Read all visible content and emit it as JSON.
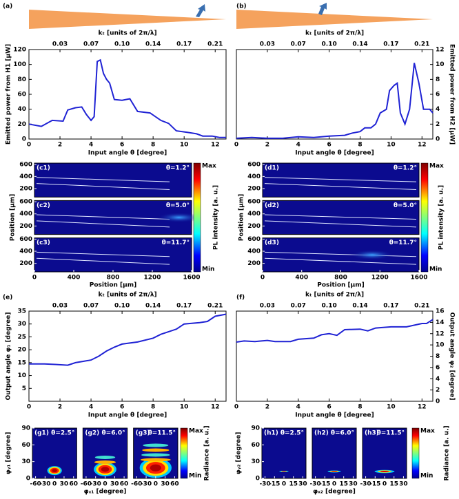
{
  "chart_data": [
    {
      "type": "line",
      "panel_label": "(a)",
      "x2label": "kₜ [units of 2π/λ]",
      "xlabel": "Input angle θ [degree]",
      "ylabel": "Emitted power from H1 [μW]",
      "y_side": "left",
      "xlim": [
        0,
        12.7
      ],
      "xticks": [
        0,
        2,
        4,
        6,
        8,
        10,
        12
      ],
      "x2ticks": [
        {
          "value": 2,
          "label": "0.03"
        },
        {
          "value": 4,
          "label": "0.07"
        },
        {
          "value": 6,
          "label": "0.10"
        },
        {
          "value": 8,
          "label": "0.14"
        },
        {
          "value": 10,
          "label": "0.17"
        },
        {
          "value": 12,
          "label": "0.21"
        }
      ],
      "ylim": [
        0,
        120
      ],
      "yticks": [
        0,
        20,
        40,
        60,
        80,
        100,
        120
      ],
      "x": [
        0,
        0.8,
        1.5,
        2.2,
        2.5,
        3,
        3.4,
        3.7,
        4,
        4.2,
        4.4,
        4.6,
        4.8,
        5,
        5.2,
        5.5,
        6,
        6.5,
        7,
        7.8,
        8.5,
        9,
        9.5,
        10.2,
        10.8,
        11.2,
        11.8,
        12.3,
        12.7
      ],
      "series": [
        {
          "color": "#1f22d4",
          "values": [
            20,
            17,
            25,
            24,
            39,
            42,
            43,
            33,
            25,
            30,
            104,
            106,
            88,
            80,
            75,
            53,
            52,
            54,
            37,
            35,
            25,
            21,
            11,
            9,
            7,
            4,
            4,
            2,
            2
          ]
        }
      ]
    },
    {
      "type": "line",
      "panel_label": "(b)",
      "x2label": "kₜ [units of 2π/λ]",
      "xlabel": "Input angle θ [degree]",
      "ylabel": "Emitted power from H2 [μW]",
      "y_side": "right",
      "xlim": [
        0,
        12.7
      ],
      "xticks": [
        0,
        2,
        4,
        6,
        8,
        10,
        12
      ],
      "x2ticks": [
        {
          "value": 2,
          "label": "0.03"
        },
        {
          "value": 4,
          "label": "0.07"
        },
        {
          "value": 6,
          "label": "0.10"
        },
        {
          "value": 8,
          "label": "0.14"
        },
        {
          "value": 10,
          "label": "0.17"
        },
        {
          "value": 12,
          "label": "0.21"
        }
      ],
      "ylim": [
        0,
        12
      ],
      "yticks": [
        0,
        2,
        4,
        6,
        8,
        10,
        12
      ],
      "x": [
        0,
        1,
        2,
        3,
        4,
        5,
        6,
        7,
        7.5,
        8,
        8.3,
        8.7,
        9,
        9.3,
        9.7,
        9.9,
        10.2,
        10.4,
        10.6,
        10.9,
        11.2,
        11.5,
        11.8,
        12.1,
        12.5,
        12.7
      ],
      "series": [
        {
          "color": "#1f22d4",
          "values": [
            0.1,
            0.2,
            0.1,
            0.1,
            0.3,
            0.2,
            0.4,
            0.5,
            0.8,
            1,
            1.5,
            1.5,
            2,
            3.5,
            4,
            6.5,
            7.2,
            7.5,
            3.5,
            2,
            4,
            10.2,
            7.5,
            4,
            4,
            3.5
          ]
        }
      ]
    },
    {
      "type": "heatmap",
      "layout": "stack",
      "xlabel": "Position [μm]",
      "ylabel": "Position [μm]",
      "colorbar_label": "PL intensity [a. u.]",
      "colorbar_max": "Max",
      "colorbar_min": "Min",
      "xlim": [
        0,
        1600
      ],
      "xticks": [
        0,
        400,
        800,
        1200,
        1600
      ],
      "ylim": [
        60,
        620
      ],
      "yticks": [
        200,
        400,
        600
      ],
      "panels": [
        {
          "label": "(c1)",
          "annotation": "θ=1.2°"
        },
        {
          "label": "(c2)",
          "annotation": "θ=5.0°"
        },
        {
          "label": "(c3)",
          "annotation": "θ=11.7°"
        }
      ]
    },
    {
      "type": "heatmap",
      "layout": "stack",
      "xlabel": "Position [μm]",
      "ylabel": "Position [μm]",
      "colorbar_label": "PL intensity [a. u.]",
      "colorbar_max": "Max",
      "colorbar_min": "Min",
      "xlim": [
        0,
        1600
      ],
      "xticks": [
        0,
        400,
        800,
        1200,
        1600
      ],
      "ylim": [
        60,
        620
      ],
      "yticks": [
        200,
        400,
        600
      ],
      "panels": [
        {
          "label": "(d1)",
          "annotation": "θ=1.2°"
        },
        {
          "label": "(d2)",
          "annotation": "θ=5.0°"
        },
        {
          "label": "(d3)",
          "annotation": "θ=11.7°"
        }
      ]
    },
    {
      "type": "line",
      "panel_label": "(e)",
      "x2label": "kₜ [units of 2π/λ]",
      "xlabel": "Input angle θ [degree]",
      "ylabel": "Output angle φ₁ [degree]",
      "y_side": "left",
      "xlim": [
        0,
        12.7
      ],
      "xticks": [
        0,
        2,
        4,
        6,
        8,
        10,
        12
      ],
      "x2ticks": [
        {
          "value": 2,
          "label": "0.03"
        },
        {
          "value": 4,
          "label": "0.07"
        },
        {
          "value": 6,
          "label": "0.10"
        },
        {
          "value": 8,
          "label": "0.14"
        },
        {
          "value": 10,
          "label": "0.17"
        },
        {
          "value": 12,
          "label": "0.21"
        }
      ],
      "ylim": [
        0,
        35
      ],
      "yticks": [
        5,
        10,
        15,
        20,
        25,
        30,
        35
      ],
      "x": [
        0,
        1,
        1.7,
        2.5,
        3,
        3.5,
        4,
        4.5,
        5,
        5.5,
        6,
        7,
        8,
        8.5,
        9,
        9.5,
        10,
        11,
        11.5,
        12,
        12.7
      ],
      "series": [
        {
          "color": "#1f22d4",
          "values": [
            14.5,
            14.5,
            14.3,
            14,
            15,
            15.5,
            16,
            17.5,
            19.5,
            21,
            22.2,
            23,
            24.5,
            26,
            27,
            28,
            30,
            30.5,
            31,
            33,
            33.8
          ]
        }
      ]
    },
    {
      "type": "line",
      "panel_label": "(f)",
      "x2label": "kₜ [units of 2π/λ]",
      "xlabel": "Input angle θ [degree]",
      "ylabel": "Output angle φ₂ [degree]",
      "y_side": "right",
      "xlim": [
        0,
        12.7
      ],
      "xticks": [
        0,
        2,
        4,
        6,
        8,
        10,
        12
      ],
      "x2ticks": [
        {
          "value": 2,
          "label": "0.03"
        },
        {
          "value": 4,
          "label": "0.07"
        },
        {
          "value": 6,
          "label": "0.10"
        },
        {
          "value": 8,
          "label": "0.14"
        },
        {
          "value": 10,
          "label": "0.17"
        },
        {
          "value": 12,
          "label": "0.21"
        }
      ],
      "ylim": [
        0,
        16
      ],
      "yticks": [
        0,
        2,
        4,
        6,
        8,
        10,
        12,
        14,
        16
      ],
      "x": [
        0,
        0.5,
        1.2,
        2,
        2.5,
        3,
        3.5,
        4,
        5,
        5.5,
        6,
        6.5,
        7,
        8,
        8.5,
        9,
        10,
        11,
        12,
        12.3,
        12.7
      ],
      "series": [
        {
          "color": "#1f22d4",
          "values": [
            10.5,
            10.7,
            10.6,
            10.8,
            10.6,
            10.6,
            10.6,
            11,
            11.2,
            11.8,
            12,
            11.7,
            12.7,
            12.8,
            12.5,
            13,
            13.2,
            13.2,
            13.8,
            13.8,
            14.5
          ]
        }
      ]
    },
    {
      "type": "heatmap",
      "layout": "row",
      "xlabel": "φₓ₁ [degree]",
      "ylabel": "φᵧ₁ [degree]",
      "colorbar_label": "Radiance [a. u.]",
      "colorbar_max": "Max",
      "colorbar_min": "Min",
      "xlim": [
        -70,
        70
      ],
      "xticks": [
        -60,
        -30,
        0,
        30,
        60
      ],
      "ylim": [
        0,
        90
      ],
      "yticks": [
        0,
        30,
        60,
        90
      ],
      "panels": [
        {
          "label": "(g1)",
          "annotation": "θ=2.5°"
        },
        {
          "label": "(g2)",
          "annotation": "θ=6.0°"
        },
        {
          "label": "(g3)",
          "annotation": "θ=11.5°"
        }
      ]
    },
    {
      "type": "heatmap",
      "layout": "row",
      "xlabel": "φₓ₂ [degree]",
      "ylabel": "φᵧ₂ [degree]",
      "colorbar_label": "Radiance [a. u.]",
      "colorbar_max": "Max",
      "colorbar_min": "Min",
      "xlim": [
        -35,
        35
      ],
      "xticks": [
        -30,
        -15,
        0,
        15,
        30
      ],
      "ylim": [
        0,
        90
      ],
      "yticks": [
        0,
        30,
        60,
        90
      ],
      "panels": [
        {
          "label": "(h1)",
          "annotation": "θ=2.5°"
        },
        {
          "label": "(h2)",
          "annotation": "θ=6.0°"
        },
        {
          "label": "(h3)",
          "annotation": "θ=11.5°"
        }
      ]
    }
  ]
}
